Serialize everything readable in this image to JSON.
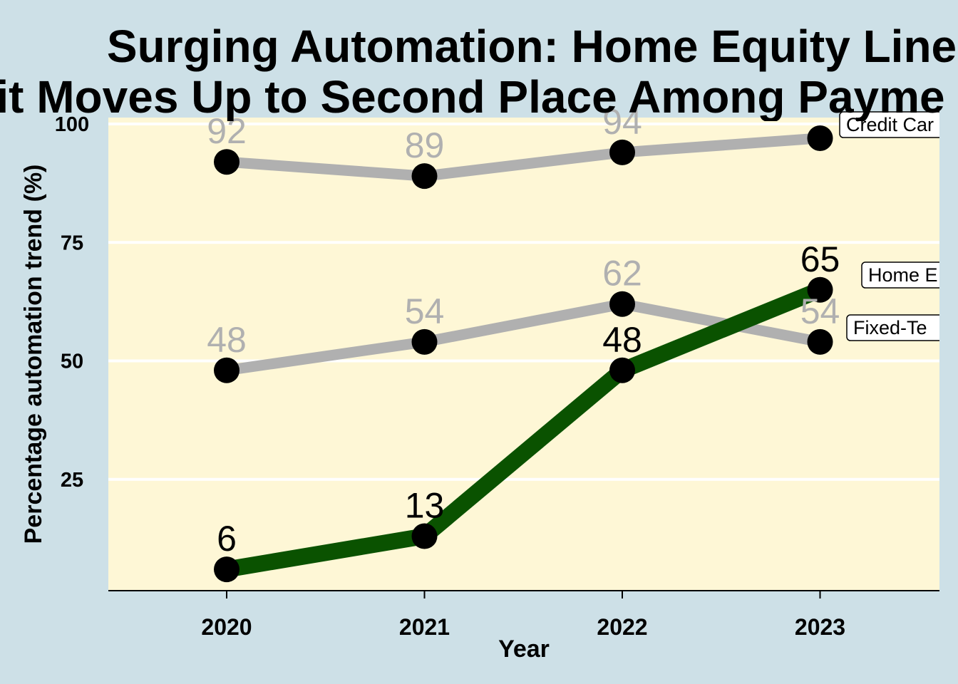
{
  "chart_data": {
    "type": "line",
    "title_lines": [
      "Surging Automation: Home Equity Line",
      "it Moves Up to Second Place Among Payme"
    ],
    "xlabel": "Year",
    "ylabel": "Percentage automation trend (%)",
    "categories": [
      "2020",
      "2021",
      "2022",
      "2023"
    ],
    "ylim": [
      0,
      100
    ],
    "yticks": [
      "25",
      "50",
      "75",
      "100"
    ],
    "grid": "horizontal",
    "series": [
      {
        "name": "Credit Car",
        "values": [
          92,
          89,
          94,
          97
        ],
        "labels": [
          "92",
          "89",
          "94",
          ""
        ],
        "color": "#b0b0b0",
        "label_color": "#b0b0b0",
        "highlight": false
      },
      {
        "name": "Fixed-Te",
        "values": [
          48,
          54,
          62,
          54
        ],
        "labels": [
          "48",
          "54",
          "62",
          "54"
        ],
        "color": "#b0b0b0",
        "label_color": "#b0b0b0",
        "highlight": false
      },
      {
        "name": "Home E",
        "values": [
          6,
          13,
          48,
          65
        ],
        "labels": [
          "6",
          "13",
          "48",
          "65"
        ],
        "color": "#0a5200",
        "label_color": "#000000",
        "highlight": true
      }
    ],
    "colors": {
      "background": "#cde0e7",
      "panel": "#fef7d6",
      "grid": "#ffffff",
      "marker": "#000000"
    }
  }
}
